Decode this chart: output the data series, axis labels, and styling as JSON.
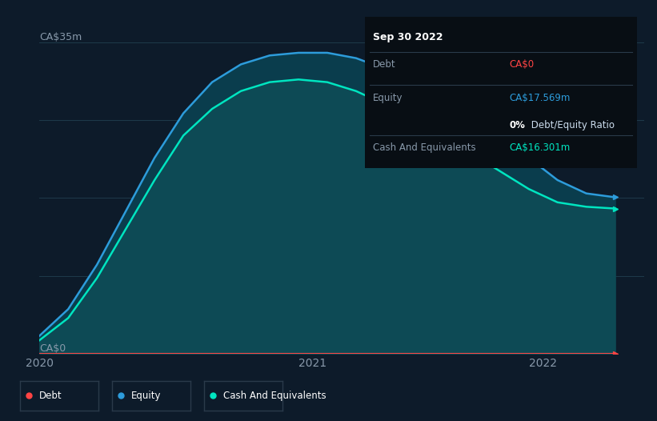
{
  "bg_color": "#0d1b2a",
  "plot_bg_color": "#0d1b2a",
  "tooltip": {
    "date": "Sep 30 2022",
    "debt_label": "Debt",
    "debt_value": "CA$0",
    "equity_label": "Equity",
    "equity_value": "CA$17.569m",
    "ratio_value": "0%",
    "ratio_rest": " Debt/Equity Ratio",
    "cash_label": "Cash And Equivalents",
    "cash_value": "CA$16.301m"
  },
  "y_label_top": "CA$35m",
  "y_label_bottom": "CA$0",
  "x_ticks": [
    "2020",
    "2021",
    "2022"
  ],
  "ylim": [
    0,
    35
  ],
  "debt_color": "#ff4444",
  "equity_color": "#2d9cdb",
  "cash_color": "#00e5c0",
  "fill_between_color": "#0a3d4d",
  "fill_bottom_color": "#0d4a55",
  "legend_items": [
    {
      "label": "Debt",
      "color": "#ff4444"
    },
    {
      "label": "Equity",
      "color": "#2d9cdb"
    },
    {
      "label": "Cash And Equivalents",
      "color": "#00e5c0"
    }
  ],
  "debt_data_x": [
    0.0,
    0.1,
    0.2,
    0.3,
    0.4,
    0.5,
    0.6,
    0.7,
    0.8,
    0.9,
    1.0
  ],
  "debt_data_y": [
    0.0,
    0.0,
    0.0,
    0.0,
    0.0,
    0.0,
    0.0,
    0.0,
    0.0,
    0.0,
    0.0
  ],
  "equity_data_x": [
    0.0,
    0.05,
    0.1,
    0.15,
    0.2,
    0.25,
    0.3,
    0.35,
    0.4,
    0.45,
    0.5,
    0.55,
    0.6,
    0.65,
    0.7,
    0.75,
    0.8,
    0.85,
    0.9,
    0.95,
    1.0
  ],
  "equity_data_y": [
    2.0,
    5.0,
    10.0,
    16.0,
    22.0,
    27.0,
    30.5,
    32.5,
    33.5,
    33.8,
    33.8,
    33.2,
    32.0,
    30.5,
    28.5,
    26.5,
    24.5,
    22.0,
    19.5,
    18.0,
    17.569
  ],
  "cash_data_x": [
    0.0,
    0.05,
    0.1,
    0.15,
    0.2,
    0.25,
    0.3,
    0.35,
    0.4,
    0.45,
    0.5,
    0.55,
    0.6,
    0.65,
    0.7,
    0.75,
    0.8,
    0.85,
    0.9,
    0.95,
    1.0
  ],
  "cash_data_y": [
    1.5,
    4.0,
    8.5,
    14.0,
    19.5,
    24.5,
    27.5,
    29.5,
    30.5,
    30.8,
    30.5,
    29.5,
    28.0,
    26.5,
    24.5,
    22.5,
    20.5,
    18.5,
    17.0,
    16.5,
    16.301
  ]
}
